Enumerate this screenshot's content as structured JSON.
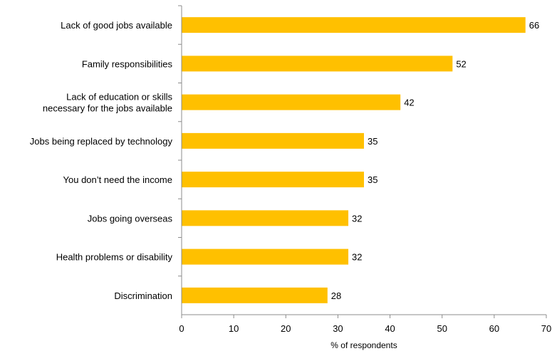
{
  "chart_data": {
    "type": "bar",
    "orientation": "horizontal",
    "categories": [
      [
        "Lack of good jobs available"
      ],
      [
        "Family responsibilities"
      ],
      [
        "Lack of education or skills",
        "necessary for the jobs available"
      ],
      [
        "Jobs being replaced by technology"
      ],
      [
        "You don’t need the income"
      ],
      [
        "Jobs going overseas"
      ],
      [
        "Health problems or disability"
      ],
      [
        "Discrimination"
      ]
    ],
    "values": [
      66,
      52,
      42,
      35,
      35,
      32,
      32,
      28
    ],
    "value_labels": [
      "66",
      "52",
      "42",
      "35",
      "35",
      "32",
      "32",
      "28"
    ],
    "xlim": [
      0,
      70
    ],
    "xticks": [
      0,
      10,
      20,
      30,
      40,
      50,
      60,
      70
    ],
    "xtick_labels": [
      "0",
      "10",
      "20",
      "30",
      "40",
      "50",
      "60",
      "70"
    ],
    "xlabel": "% of respondents",
    "ylabel": "",
    "title": "",
    "grid": false,
    "legend": "none",
    "colors": {
      "bar": "#FFC000",
      "axis": "#8c8c8c",
      "text": "#000000"
    }
  }
}
